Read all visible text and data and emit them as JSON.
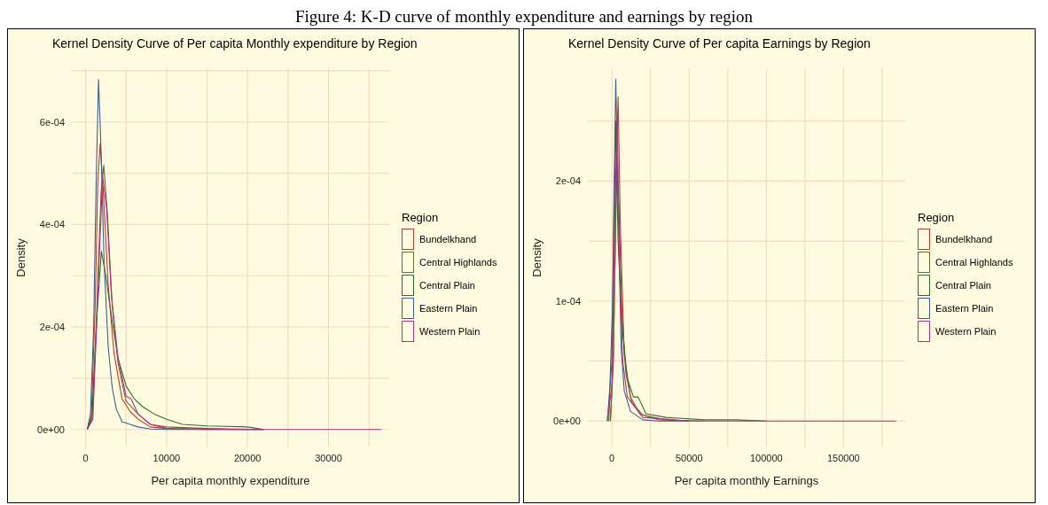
{
  "chart_data": [
    {
      "type": "line",
      "title": "Kernel Density Curve of Per capita  Monthly expenditure by Region",
      "xlabel": "Per capita monthly expenditure",
      "ylabel": "Density",
      "legend_title": "Region",
      "legend": "right",
      "grid": true,
      "marker": "none",
      "line_style": "solid",
      "annotations": [
        "Figure 4: K-D curve of monthly expenditure and earnings by region"
      ],
      "xlim": [
        -1700,
        37500
      ],
      "xticks": [
        0,
        {
          "value": 5000,
          "label": null
        },
        10000,
        {
          "value": 15000,
          "label": null
        },
        20000,
        {
          "value": 25000,
          "label": null
        },
        30000,
        {
          "value": 35000,
          "label": null
        }
      ],
      "ylim": [
        -3.5e-05,
        0.000705
      ],
      "yticks": [
        {
          "value": 0,
          "label": "0e+00"
        },
        {
          "value": 0.0001,
          "label": null
        },
        {
          "value": 0.0002,
          "label": "2e-04"
        },
        {
          "value": 0.0003,
          "label": null
        },
        {
          "value": 0.0004,
          "label": "4e-04"
        },
        {
          "value": 0.0005,
          "label": null
        },
        {
          "value": 0.0006,
          "label": "6e-04"
        },
        {
          "value": 0.0007,
          "label": null
        }
      ],
      "series": [
        {
          "name": "Bundelkhand",
          "color": "#c0392b",
          "x": [
            200,
            700,
            1200,
            1500,
            1800,
            2200,
            2800,
            3500,
            4500,
            5500,
            6500,
            8000,
            10000,
            15000,
            22000
          ],
          "values": [
            0,
            2e-05,
            0.00025,
            0.00048,
            0.000558,
            0.00046,
            0.00028,
            0.00015,
            6e-05,
            3.5e-05,
            2e-05,
            5e-06,
            2e-06,
            0,
            0
          ]
        },
        {
          "name": "Central Highlands",
          "color": "#6b6b2a",
          "x": [
            200,
            800,
            1400,
            1900,
            2250,
            2700,
            3300,
            4000,
            5000,
            6500,
            8000,
            10000,
            15000,
            22000
          ],
          "values": [
            0,
            2e-05,
            0.00024,
            0.00046,
            0.000516,
            0.00042,
            0.00024,
            0.00013,
            5.5e-05,
            3e-05,
            1e-05,
            5e-06,
            2e-06,
            0
          ]
        },
        {
          "name": "Central Plain",
          "color": "#2e6b2e",
          "x": [
            200,
            800,
            1400,
            1950,
            2500,
            3200,
            4000,
            5000,
            6000,
            7000,
            8500,
            10000,
            12000,
            15000,
            20000,
            22000
          ],
          "values": [
            0,
            3e-05,
            0.00022,
            0.000348,
            0.0003,
            0.00022,
            0.00014,
            8.5e-05,
            6e-05,
            4.5e-05,
            3e-05,
            2e-05,
            1e-05,
            7e-06,
            5e-06,
            0
          ]
        },
        {
          "name": "Eastern Plain",
          "color": "#3b5f8f",
          "x": [
            200,
            600,
            1000,
            1300,
            1600,
            1900,
            2300,
            2800,
            3300,
            3800,
            4500,
            5500,
            6500,
            8000,
            10000,
            22000
          ],
          "values": [
            0,
            3e-05,
            0.0002,
            0.00048,
            0.000683,
            0.00055,
            0.00032,
            0.00016,
            8e-05,
            4e-05,
            1.5e-05,
            1e-05,
            5e-06,
            1e-06,
            0,
            0
          ]
        },
        {
          "name": "Western Plain",
          "color": "#b0308a",
          "x": [
            200,
            900,
            1500,
            2100,
            2600,
            3200,
            4000,
            5000,
            5600,
            6500,
            8000,
            10000,
            20000,
            36500
          ],
          "values": [
            0,
            2e-05,
            0.00026,
            0.000494,
            0.00043,
            0.00026,
            0.00014,
            6.5e-05,
            6e-05,
            3e-05,
            1e-05,
            2e-06,
            0,
            0
          ]
        }
      ]
    },
    {
      "type": "line",
      "title": "Kernel Density Curve of Per capita  Earnings by Region",
      "xlabel": "Per capita  monthly Earnings",
      "ylabel": "Density",
      "legend_title": "Region",
      "legend": "right",
      "grid": true,
      "marker": "none",
      "line_style": "solid",
      "xlim": [
        -15600,
        190000
      ],
      "xticks": [
        0,
        {
          "value": 25000,
          "label": null
        },
        50000,
        {
          "value": 75000,
          "label": null
        },
        100000,
        {
          "value": 125000,
          "label": null
        },
        150000,
        {
          "value": 175000,
          "label": null
        }
      ],
      "ylim": [
        -2.2e-05,
        0.000294
      ],
      "yticks": [
        {
          "value": 0,
          "label": "0e+00"
        },
        {
          "value": 5e-05,
          "label": null
        },
        {
          "value": 0.0001,
          "label": "1e-04"
        },
        {
          "value": 0.00015,
          "label": null
        },
        {
          "value": 0.0002,
          "label": "2e-04"
        },
        {
          "value": 0.00025,
          "label": null
        }
      ],
      "series": [
        {
          "name": "Bundelkhand",
          "color": "#c0392b",
          "x": [
            -1000,
            1000,
            3000,
            4000,
            5500,
            8000,
            12000,
            18000,
            30000,
            50000
          ],
          "values": [
            0,
            5e-05,
            0.00022,
            0.00027,
            0.00016,
            5.5e-05,
            2e-05,
            6e-06,
            1e-06,
            0
          ]
        },
        {
          "name": "Central Highlands",
          "color": "#6b6b2a",
          "x": [
            -1000,
            1000,
            3000,
            4500,
            6500,
            9000,
            13000,
            20000,
            35000,
            60000
          ],
          "values": [
            0,
            6e-05,
            0.0002,
            0.00018,
            9e-05,
            4e-05,
            1.5e-05,
            5e-06,
            1e-06,
            0
          ]
        },
        {
          "name": "Central Plain",
          "color": "#2e6b2e",
          "x": [
            -2000,
            500,
            2500,
            4000,
            6500,
            10000,
            14000,
            17000,
            22000,
            35000,
            60000,
            80000,
            100000
          ],
          "values": [
            0,
            0.0001,
            0.00025,
            0.00015,
            8e-05,
            3.5e-05,
            2e-05,
            2e-05,
            6e-06,
            3e-06,
            1e-06,
            1e-06,
            0
          ]
        },
        {
          "name": "Eastern Plain",
          "color": "#3b5f8f",
          "x": [
            -3000,
            0,
            1000,
            2500,
            4000,
            6000,
            8000,
            12000,
            20000,
            30000,
            50000
          ],
          "values": [
            0,
            5e-05,
            0.00016,
            0.000285,
            0.00018,
            6e-05,
            2.5e-05,
            8e-06,
            1e-06,
            0,
            0
          ]
        },
        {
          "name": "Western Plain",
          "color": "#b0308a",
          "x": [
            -3000,
            0,
            2000,
            3500,
            5000,
            7000,
            10000,
            20000,
            50000,
            184000
          ],
          "values": [
            0,
            3e-05,
            0.00018,
            0.00025,
            0.00013,
            5e-05,
            2e-05,
            3e-06,
            0,
            0
          ]
        }
      ]
    }
  ]
}
